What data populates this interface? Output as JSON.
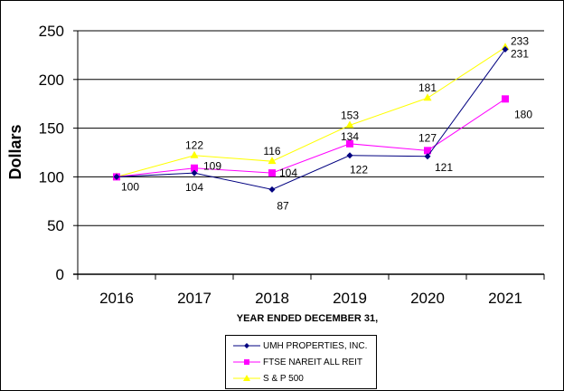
{
  "chart_data": {
    "type": "line",
    "title": "",
    "xlabel": "YEAR ENDED DECEMBER 31,",
    "ylabel": "Dollars",
    "ylim": [
      0,
      250
    ],
    "yticks": [
      0,
      50,
      100,
      150,
      200,
      250
    ],
    "grid": true,
    "legend_position": "bottom-center",
    "categories": [
      "2016",
      "2017",
      "2018",
      "2019",
      "2020",
      "2021"
    ],
    "series": [
      {
        "name": "UMH PROPERTIES, INC.",
        "color": "#000080",
        "marker": "diamond",
        "values": [
          100,
          104,
          87,
          122,
          121,
          231
        ]
      },
      {
        "name": "FTSE NAREIT ALL REIT",
        "color": "#FF00FF",
        "marker": "square",
        "values": [
          100,
          109,
          104,
          134,
          127,
          180
        ]
      },
      {
        "name": "S & P 500",
        "color": "#FFFF00",
        "marker": "triangle",
        "values": [
          100,
          122,
          116,
          153,
          181,
          233
        ]
      }
    ],
    "data_labels": [
      {
        "series": 0,
        "index": 1,
        "text": "104"
      },
      {
        "series": 0,
        "index": 2,
        "text": "87"
      },
      {
        "series": 0,
        "index": 3,
        "text": "122"
      },
      {
        "series": 0,
        "index": 4,
        "text": "121"
      },
      {
        "series": 0,
        "index": 5,
        "text": "231"
      },
      {
        "series": 1,
        "index": 0,
        "text": "100"
      },
      {
        "series": 1,
        "index": 1,
        "text": "109"
      },
      {
        "series": 1,
        "index": 2,
        "text": "104"
      },
      {
        "series": 1,
        "index": 3,
        "text": "134"
      },
      {
        "series": 1,
        "index": 4,
        "text": "127"
      },
      {
        "series": 1,
        "index": 5,
        "text": "180"
      },
      {
        "series": 2,
        "index": 1,
        "text": "122"
      },
      {
        "series": 2,
        "index": 2,
        "text": "116"
      },
      {
        "series": 2,
        "index": 3,
        "text": "153"
      },
      {
        "series": 2,
        "index": 4,
        "text": "181"
      },
      {
        "series": 2,
        "index": 5,
        "text": "233"
      }
    ]
  }
}
